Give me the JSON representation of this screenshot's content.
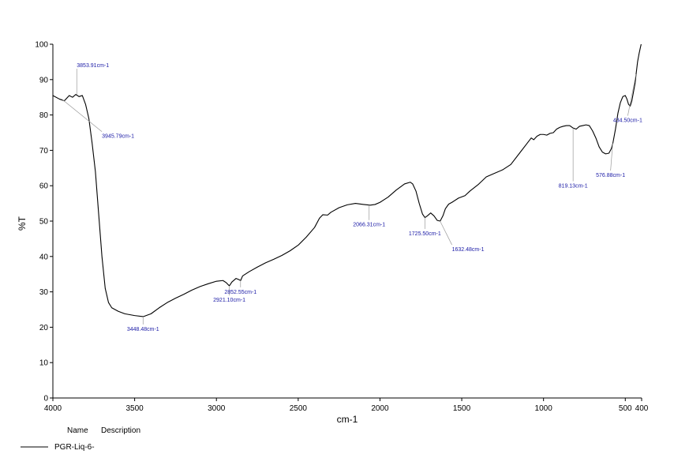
{
  "chart_data": {
    "type": "line",
    "title": "",
    "xlabel": "cm-1",
    "ylabel": "%T",
    "xlim": [
      4000,
      400
    ],
    "ylim": [
      0,
      100
    ],
    "x_reversed": true,
    "grid": false,
    "x_ticks": [
      {
        "value": 4000,
        "label": "4000"
      },
      {
        "value": 3500,
        "label": "3500"
      },
      {
        "value": 3000,
        "label": "3000"
      },
      {
        "value": 2500,
        "label": "2500"
      },
      {
        "value": 2000,
        "label": "2000"
      },
      {
        "value": 1500,
        "label": "1500"
      },
      {
        "value": 1000,
        "label": "1000"
      },
      {
        "value": 500,
        "label": "500"
      },
      {
        "value": 400,
        "label": "400"
      }
    ],
    "y_ticks": [
      {
        "value": 0,
        "label": "0"
      },
      {
        "value": 10,
        "label": "10"
      },
      {
        "value": 20,
        "label": "20"
      },
      {
        "value": 30,
        "label": "30"
      },
      {
        "value": 40,
        "label": "40"
      },
      {
        "value": 50,
        "label": "50"
      },
      {
        "value": 60,
        "label": "60"
      },
      {
        "value": 70,
        "label": "70"
      },
      {
        "value": 80,
        "label": "80"
      },
      {
        "value": 90,
        "label": "90"
      },
      {
        "value": 100,
        "label": "100"
      }
    ],
    "series": [
      {
        "name": "PGR-Liq-6-",
        "color": "#000000",
        "points": [
          [
            4000,
            85.5
          ],
          [
            3960,
            84.5
          ],
          [
            3930,
            84.0
          ],
          [
            3900,
            85.5
          ],
          [
            3880,
            85.0
          ],
          [
            3860,
            85.8
          ],
          [
            3840,
            85.2
          ],
          [
            3820,
            85.5
          ],
          [
            3800,
            83.0
          ],
          [
            3780,
            79.0
          ],
          [
            3760,
            72.0
          ],
          [
            3740,
            64.0
          ],
          [
            3720,
            52.0
          ],
          [
            3700,
            40.0
          ],
          [
            3680,
            31.0
          ],
          [
            3660,
            27.0
          ],
          [
            3640,
            25.5
          ],
          [
            3600,
            24.5
          ],
          [
            3560,
            23.8
          ],
          [
            3500,
            23.3
          ],
          [
            3448,
            23.0
          ],
          [
            3400,
            23.8
          ],
          [
            3350,
            25.5
          ],
          [
            3300,
            27.0
          ],
          [
            3250,
            28.2
          ],
          [
            3200,
            29.3
          ],
          [
            3150,
            30.5
          ],
          [
            3100,
            31.5
          ],
          [
            3050,
            32.3
          ],
          [
            3000,
            33.0
          ],
          [
            2960,
            33.2
          ],
          [
            2940,
            32.6
          ],
          [
            2921,
            31.7
          ],
          [
            2905,
            32.8
          ],
          [
            2880,
            33.8
          ],
          [
            2865,
            33.5
          ],
          [
            2852,
            33.2
          ],
          [
            2840,
            34.5
          ],
          [
            2800,
            35.7
          ],
          [
            2750,
            37.0
          ],
          [
            2700,
            38.2
          ],
          [
            2650,
            39.2
          ],
          [
            2600,
            40.3
          ],
          [
            2550,
            41.6
          ],
          [
            2500,
            43.2
          ],
          [
            2450,
            45.5
          ],
          [
            2400,
            48.2
          ],
          [
            2370,
            50.8
          ],
          [
            2350,
            51.8
          ],
          [
            2320,
            51.7
          ],
          [
            2300,
            52.5
          ],
          [
            2250,
            53.8
          ],
          [
            2200,
            54.6
          ],
          [
            2150,
            55.0
          ],
          [
            2100,
            54.7
          ],
          [
            2060,
            54.5
          ],
          [
            2030,
            54.7
          ],
          [
            2000,
            55.3
          ],
          [
            1950,
            56.8
          ],
          [
            1900,
            58.8
          ],
          [
            1850,
            60.5
          ],
          [
            1815,
            61.0
          ],
          [
            1800,
            60.5
          ],
          [
            1780,
            58.5
          ],
          [
            1760,
            55.0
          ],
          [
            1740,
            52.0
          ],
          [
            1725,
            51.0
          ],
          [
            1710,
            51.5
          ],
          [
            1690,
            52.3
          ],
          [
            1670,
            51.5
          ],
          [
            1650,
            50.2
          ],
          [
            1632,
            50.0
          ],
          [
            1615,
            51.5
          ],
          [
            1600,
            53.5
          ],
          [
            1580,
            54.8
          ],
          [
            1560,
            55.3
          ],
          [
            1520,
            56.5
          ],
          [
            1480,
            57.2
          ],
          [
            1450,
            58.5
          ],
          [
            1400,
            60.3
          ],
          [
            1350,
            62.5
          ],
          [
            1300,
            63.5
          ],
          [
            1250,
            64.5
          ],
          [
            1200,
            66.0
          ],
          [
            1150,
            69.0
          ],
          [
            1100,
            72.0
          ],
          [
            1075,
            73.5
          ],
          [
            1060,
            73.0
          ],
          [
            1040,
            74.0
          ],
          [
            1020,
            74.5
          ],
          [
            1000,
            74.5
          ],
          [
            980,
            74.3
          ],
          [
            960,
            74.8
          ],
          [
            940,
            75.0
          ],
          [
            920,
            76.0
          ],
          [
            900,
            76.5
          ],
          [
            880,
            76.8
          ],
          [
            860,
            77.0
          ],
          [
            840,
            77.0
          ],
          [
            819,
            76.3
          ],
          [
            800,
            76.0
          ],
          [
            780,
            76.8
          ],
          [
            760,
            77.0
          ],
          [
            740,
            77.2
          ],
          [
            720,
            77.0
          ],
          [
            700,
            75.5
          ],
          [
            680,
            73.5
          ],
          [
            660,
            71.0
          ],
          [
            640,
            69.5
          ],
          [
            620,
            69.0
          ],
          [
            600,
            69.2
          ],
          [
            585,
            70.5
          ],
          [
            576,
            72.0
          ],
          [
            560,
            76.0
          ],
          [
            545,
            80.5
          ],
          [
            530,
            83.5
          ],
          [
            515,
            85.2
          ],
          [
            500,
            85.5
          ],
          [
            490,
            84.5
          ],
          [
            480,
            83.0
          ],
          [
            470,
            82.5
          ],
          [
            460,
            84.0
          ],
          [
            450,
            86.5
          ],
          [
            440,
            89.0
          ],
          [
            434,
            91.5
          ],
          [
            425,
            95.0
          ],
          [
            415,
            97.5
          ],
          [
            408,
            99.0
          ],
          [
            403,
            100.0
          ]
        ]
      }
    ],
    "annotations": [
      {
        "label": "3853.91cm-1",
        "x": 3853.91,
        "y": 85.8,
        "tx": 3853.91,
        "ty": 93.5,
        "anchor": "start"
      },
      {
        "label": "3945.79cm-1",
        "x": 3945.79,
        "y": 84.5,
        "tx": 3700,
        "ty": 73.5,
        "anchor": "start"
      },
      {
        "label": "3448.48cm-1",
        "x": 3448.48,
        "y": 23.0,
        "tx": 3448.48,
        "ty": 19.0,
        "anchor": "middle"
      },
      {
        "label": "2921.10cm-1",
        "x": 2921.1,
        "y": 31.7,
        "tx": 2921.1,
        "ty": 27.2,
        "anchor": "middle"
      },
      {
        "label": "2852.55cm-1",
        "x": 2852.55,
        "y": 33.2,
        "tx": 2852.55,
        "ty": 29.5,
        "anchor": "middle"
      },
      {
        "label": "2066.31cm-1",
        "x": 2066.31,
        "y": 54.5,
        "tx": 2066.31,
        "ty": 48.5,
        "anchor": "middle"
      },
      {
        "label": "1725.50cm-1",
        "x": 1725.5,
        "y": 51.0,
        "tx": 1725.5,
        "ty": 46.0,
        "anchor": "middle"
      },
      {
        "label": "1632.48cm-1",
        "x": 1632.48,
        "y": 50.0,
        "tx": 1560,
        "ty": 41.5,
        "anchor": "start"
      },
      {
        "label": "819.13cm-1",
        "x": 819.13,
        "y": 76.3,
        "tx": 819.13,
        "ty": 59.5,
        "anchor": "middle"
      },
      {
        "label": "576.88cm-1",
        "x": 576.88,
        "y": 72.0,
        "tx": 590,
        "ty": 62.5,
        "anchor": "middle"
      },
      {
        "label": "434.50cm-1",
        "x": 434.5,
        "y": 91.5,
        "tx": 485,
        "ty": 78.0,
        "anchor": "middle"
      }
    ]
  },
  "legend": {
    "name_header": "Name",
    "description_header": "Description",
    "entry_name": "PGR-Liq-6-"
  }
}
